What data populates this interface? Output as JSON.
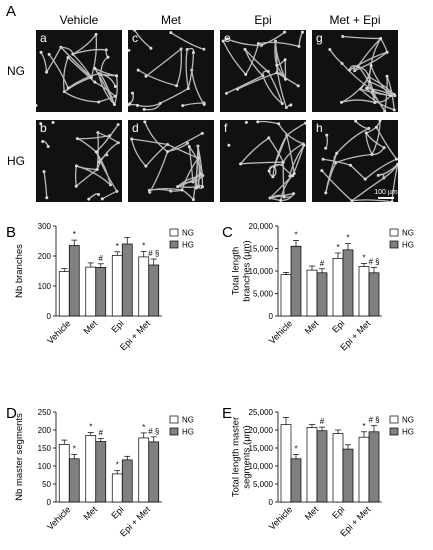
{
  "panel_a": {
    "label": "A",
    "columns": [
      "Vehicle",
      "Met",
      "Epi",
      "Met + Epi"
    ],
    "rows": [
      "NG",
      "HG"
    ],
    "image_labels": [
      [
        "a",
        "c",
        "e",
        "g"
      ],
      [
        "b",
        "d",
        "f",
        "h"
      ]
    ],
    "scale_bar": "100 µm"
  },
  "chart_data": [
    {
      "type": "bar",
      "panel": "B",
      "ylabel": [
        "Nb branches"
      ],
      "categories": [
        "Vehicle",
        "Met",
        "Epi",
        "Epi + Met"
      ],
      "ylim": [
        0,
        300
      ],
      "yticks": [
        0,
        100,
        200,
        300
      ],
      "legend": "right",
      "series": [
        {
          "name": "NG",
          "color": "#ffffff",
          "values": [
            148,
            163,
            202,
            197
          ],
          "errors": [
            10,
            14,
            12,
            18
          ],
          "annotations": [
            null,
            null,
            "*",
            "*"
          ]
        },
        {
          "name": "HG",
          "color": "#808080",
          "values": [
            235,
            162,
            240,
            170
          ],
          "errors": [
            18,
            12,
            22,
            20
          ],
          "annotations": [
            "*",
            "#",
            null,
            "# §"
          ]
        }
      ]
    },
    {
      "type": "bar",
      "panel": "C",
      "ylabel": [
        "Total length",
        "branches (µm)"
      ],
      "categories": [
        "Vehicle",
        "Met",
        "Epi",
        "Epi + Met"
      ],
      "ylim": [
        0,
        20000
      ],
      "yticks": [
        0,
        {
          "value": 5000,
          "label": "5,000"
        },
        {
          "value": 10000,
          "label": "10,000"
        },
        {
          "value": 15000,
          "label": "15,000"
        },
        {
          "value": 20000,
          "label": "20,000"
        }
      ],
      "legend": "right",
      "series": [
        {
          "name": "NG",
          "color": "#ffffff",
          "values": [
            9200,
            10200,
            12800,
            11000
          ],
          "errors": [
            500,
            900,
            1200,
            700
          ],
          "annotations": [
            null,
            null,
            "*",
            "*"
          ]
        },
        {
          "name": "HG",
          "color": "#808080",
          "values": [
            15500,
            9600,
            14700,
            9600
          ],
          "errors": [
            1300,
            900,
            1400,
            1200
          ],
          "annotations": [
            "*",
            "#",
            "*",
            "# §"
          ]
        }
      ]
    },
    {
      "type": "bar",
      "panel": "D",
      "ylabel": [
        "Nb master segments"
      ],
      "categories": [
        "Vehicle",
        "Met",
        "Epi",
        "Epi + Met"
      ],
      "ylim": [
        0,
        250
      ],
      "yticks": [
        0,
        50,
        100,
        150,
        200,
        250
      ],
      "legend": "right",
      "series": [
        {
          "name": "NG",
          "color": "#ffffff",
          "values": [
            160,
            185,
            78,
            178
          ],
          "errors": [
            12,
            8,
            9,
            14
          ],
          "annotations": [
            null,
            "*",
            "*",
            "*"
          ]
        },
        {
          "name": "HG",
          "color": "#808080",
          "values": [
            120,
            168,
            117,
            167
          ],
          "errors": [
            12,
            8,
            10,
            14
          ],
          "annotations": [
            "*",
            "#",
            null,
            "# §"
          ]
        }
      ]
    },
    {
      "type": "bar",
      "panel": "E",
      "ylabel": [
        "Total length master",
        "segments (µm)"
      ],
      "categories": [
        "Vehicle",
        "Met",
        "Epi",
        "Epi + Met"
      ],
      "ylim": [
        0,
        25000
      ],
      "yticks": [
        0,
        {
          "value": 5000,
          "label": "5,000"
        },
        {
          "value": 10000,
          "label": "10,000"
        },
        {
          "value": 15000,
          "label": "15,000"
        },
        {
          "value": 20000,
          "label": "20,000"
        },
        {
          "value": 25000,
          "label": "25,000"
        }
      ],
      "legend": "right",
      "series": [
        {
          "name": "NG",
          "color": "#ffffff",
          "values": [
            21500,
            20700,
            19000,
            18000
          ],
          "errors": [
            2000,
            800,
            1000,
            1500
          ],
          "annotations": [
            null,
            null,
            null,
            "*"
          ]
        },
        {
          "name": "HG",
          "color": "#808080",
          "values": [
            12000,
            19800,
            14700,
            19500
          ],
          "errors": [
            1200,
            1000,
            1200,
            1700
          ],
          "annotations": [
            "*",
            "#",
            null,
            "# §"
          ]
        }
      ]
    }
  ]
}
